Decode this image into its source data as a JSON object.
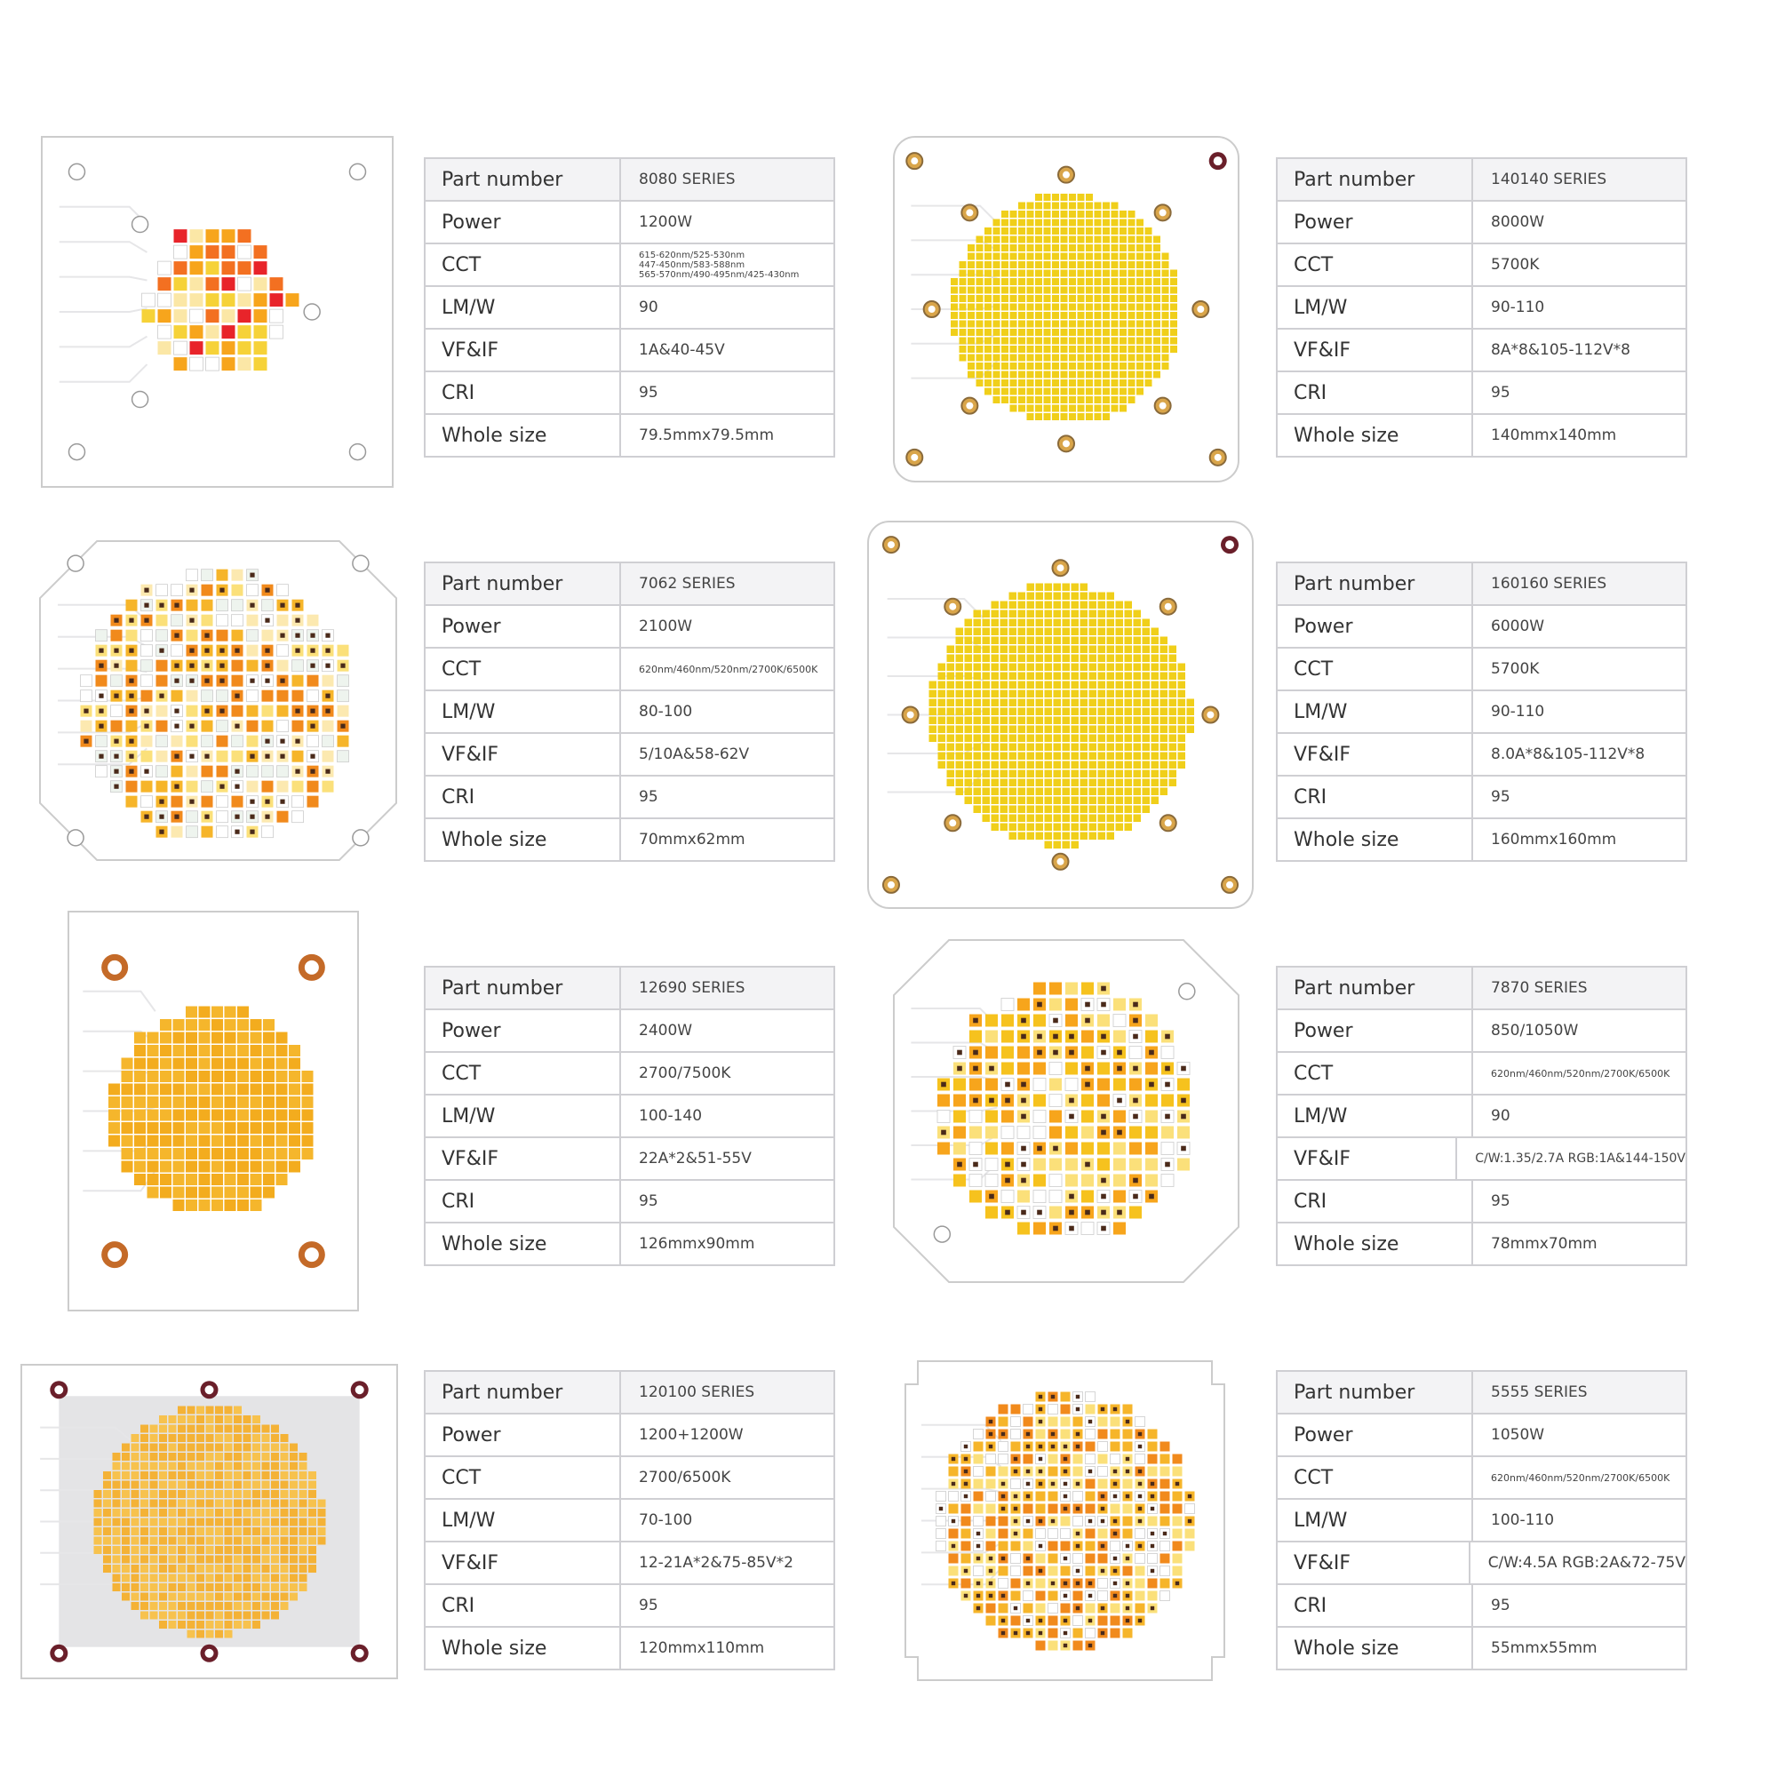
{
  "products": [
    {
      "rows": [
        [
          "Part number",
          "8080 SERIES"
        ],
        [
          "Power",
          "1200W"
        ],
        [
          "CCT",
          [
            "615-620nm/525-530nm",
            "447-450nm/583-588nm",
            "565-570nm/490-495nm/425-430nm"
          ]
        ],
        [
          "LM/W",
          "90"
        ],
        [
          "VF&IF",
          "1A&40-45V"
        ],
        [
          "CRI",
          "95"
        ],
        [
          "Whole size",
          "79.5mmx79.5mm"
        ]
      ]
    },
    {
      "rows": [
        [
          "Part number",
          "140140 SERIES"
        ],
        [
          "Power",
          "8000W"
        ],
        [
          "CCT",
          "5700K"
        ],
        [
          "LM/W",
          "90-110"
        ],
        [
          "VF&IF",
          "8A*8&105-112V*8"
        ],
        [
          "CRI",
          "95"
        ],
        [
          "Whole size",
          "140mmx140mm"
        ]
      ]
    },
    {
      "rows": [
        [
          "Part number",
          "7062 SERIES"
        ],
        [
          "Power",
          "2100W"
        ],
        [
          "CCT",
          "620nm/460nm/520nm/2700K/6500K"
        ],
        [
          "LM/W",
          "80-100"
        ],
        [
          "VF&IF",
          "5/10A&58-62V"
        ],
        [
          "CRI",
          "95"
        ],
        [
          "Whole size",
          "70mmx62mm"
        ]
      ]
    },
    {
      "rows": [
        [
          "Part number",
          "160160 SERIES"
        ],
        [
          "Power",
          "6000W"
        ],
        [
          "CCT",
          "5700K"
        ],
        [
          "LM/W",
          "90-110"
        ],
        [
          "VF&IF",
          "8.0A*8&105-112V*8"
        ],
        [
          "CRI",
          "95"
        ],
        [
          "Whole size",
          "160mmx160mm"
        ]
      ]
    },
    {
      "rows": [
        [
          "Part number",
          "12690 SERIES"
        ],
        [
          "Power",
          "2400W"
        ],
        [
          "CCT",
          "2700/7500K"
        ],
        [
          "LM/W",
          "100-140"
        ],
        [
          "VF&IF",
          "22A*2&51-55V"
        ],
        [
          "CRI",
          "95"
        ],
        [
          "Whole size",
          "126mmx90mm"
        ]
      ]
    },
    {
      "rows": [
        [
          "Part number",
          "7870 SERIES"
        ],
        [
          "Power",
          "850/1050W"
        ],
        [
          "CCT",
          "620nm/460nm/520nm/2700K/6500K"
        ],
        [
          "LM/W",
          "90"
        ],
        [
          "VF&IF",
          "C/W:1.35/2.7A RGB:1A&144-150V"
        ],
        [
          "CRI",
          "95"
        ],
        [
          "Whole size",
          "78mmx70mm"
        ]
      ]
    },
    {
      "rows": [
        [
          "Part number",
          "120100 SERIES"
        ],
        [
          "Power",
          "1200+1200W"
        ],
        [
          "CCT",
          "2700/6500K"
        ],
        [
          "LM/W",
          "70-100"
        ],
        [
          "VF&IF",
          "12-21A*2&75-85V*2"
        ],
        [
          "CRI",
          "95"
        ],
        [
          "Whole size",
          "120mmx110mm"
        ]
      ]
    },
    {
      "rows": [
        [
          "Part number",
          "5555 SERIES"
        ],
        [
          "Power",
          "1050W"
        ],
        [
          "CCT",
          "620nm/460nm/520nm/2700K/6500K"
        ],
        [
          "LM/W",
          "100-110"
        ],
        [
          "VF&IF",
          "C/W:4.5A RGB:2A&72-75V"
        ],
        [
          "CRI",
          "95"
        ],
        [
          "Whole size",
          "55mmx55mm"
        ]
      ]
    }
  ]
}
